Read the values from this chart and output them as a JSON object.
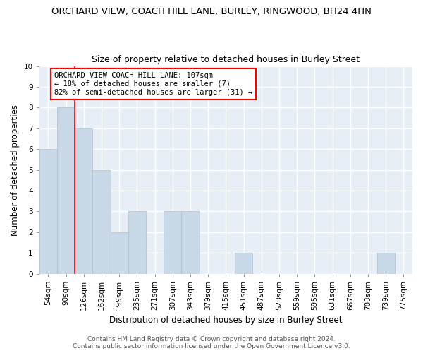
{
  "title": "ORCHARD VIEW, COACH HILL LANE, BURLEY, RINGWOOD, BH24 4HN",
  "subtitle": "Size of property relative to detached houses in Burley Street",
  "xlabel": "Distribution of detached houses by size in Burley Street",
  "ylabel": "Number of detached properties",
  "categories": [
    "54sqm",
    "90sqm",
    "126sqm",
    "162sqm",
    "199sqm",
    "235sqm",
    "271sqm",
    "307sqm",
    "343sqm",
    "379sqm",
    "415sqm",
    "451sqm",
    "487sqm",
    "523sqm",
    "559sqm",
    "595sqm",
    "631sqm",
    "667sqm",
    "703sqm",
    "739sqm",
    "775sqm"
  ],
  "values": [
    6,
    8,
    7,
    5,
    2,
    3,
    0,
    3,
    3,
    0,
    0,
    1,
    0,
    0,
    0,
    0,
    0,
    0,
    0,
    1,
    0
  ],
  "bar_color": "#c9d9e8",
  "bar_edge_color": "#a8bfd0",
  "vline_x": 1.5,
  "vline_color": "red",
  "annotation_text": "ORCHARD VIEW COACH HILL LANE: 107sqm\n← 18% of detached houses are smaller (7)\n82% of semi-detached houses are larger (31) →",
  "annotation_box_color": "white",
  "annotation_box_edge_color": "red",
  "ylim": [
    0,
    10
  ],
  "yticks": [
    0,
    1,
    2,
    3,
    4,
    5,
    6,
    7,
    8,
    9,
    10
  ],
  "footer_line1": "Contains HM Land Registry data © Crown copyright and database right 2024.",
  "footer_line2": "Contains public sector information licensed under the Open Government Licence v3.0.",
  "background_color": "#e8eef5",
  "grid_color": "white",
  "title_fontsize": 9.5,
  "subtitle_fontsize": 9,
  "xlabel_fontsize": 8.5,
  "ylabel_fontsize": 8.5,
  "tick_fontsize": 7.5,
  "footer_fontsize": 6.5,
  "annotation_fontsize": 7.5
}
